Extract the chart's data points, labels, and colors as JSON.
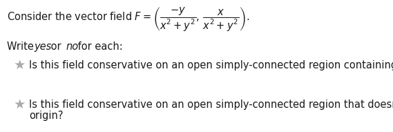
{
  "background_color": "#ffffff",
  "text_color": "#1a1a1a",
  "star_color": "#aaaaaa",
  "font_size_main": 10.5,
  "star_font_size": 14,
  "line1_text_pre": "Consider the vector field ",
  "line1_formula": "$F = \\left(\\dfrac{-y}{x^2+y^2},\\, \\dfrac{x}{x^2+y^2}\\right).$",
  "write_pre": "Write ",
  "write_yes": "yes",
  "write_mid": " or ",
  "write_no": "no",
  "write_post": " for each:",
  "question1": "Is this field conservative on an open simply-connected region containing the origin?",
  "question2_line1": "Is this field conservative on an open simply-connected region that doesn’t include the",
  "question2_line2": "origin?",
  "fig_width": 5.69,
  "fig_height": 1.91,
  "dpi": 100
}
